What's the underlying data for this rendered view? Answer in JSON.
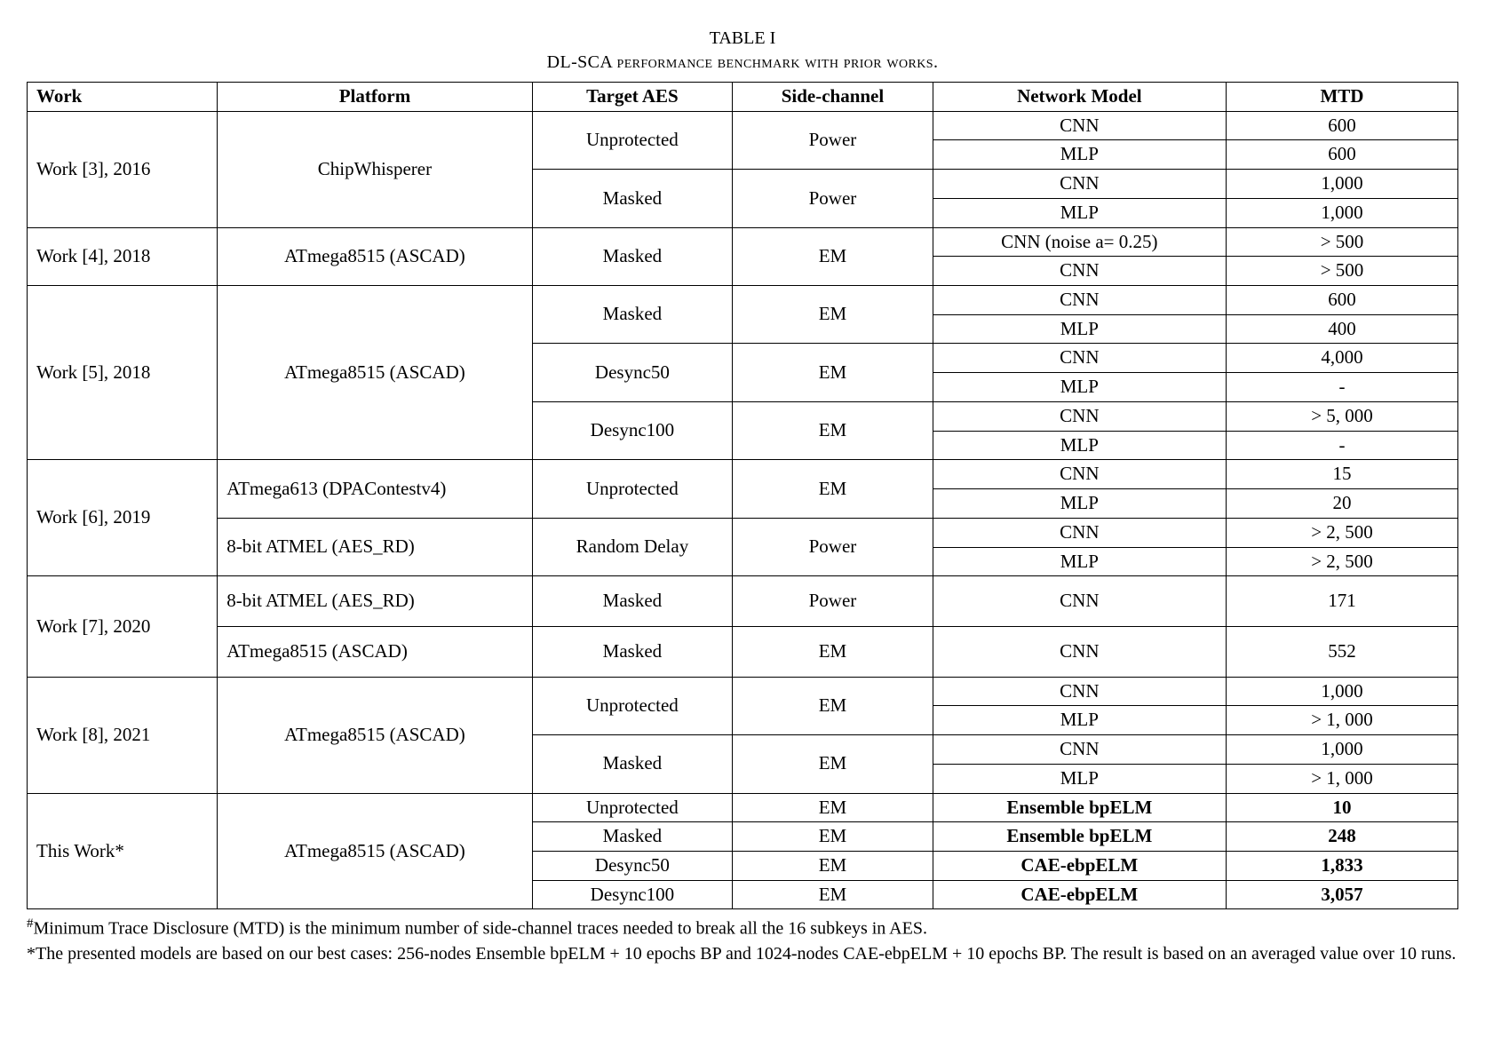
{
  "caption": {
    "num": "TABLE I",
    "title": "DL-SCA performance benchmark with prior works."
  },
  "headers": [
    "Work",
    "Platform",
    "Target AES",
    "Side-channel",
    "Network Model",
    "MTD"
  ],
  "rows": [
    {
      "work": "Work [3], 2016",
      "platform": "ChipWhisperer",
      "target": "Unprotected",
      "sc": "Power",
      "model": "CNN",
      "mtd": "600",
      "wr": 4,
      "pr": 4,
      "tr": 2,
      "sr": 2
    },
    {
      "model": "MLP",
      "mtd": "600"
    },
    {
      "target": "Masked",
      "sc": "Power",
      "model": "CNN",
      "mtd": "1,000",
      "tr": 2,
      "sr": 2
    },
    {
      "model": "MLP",
      "mtd": "1,000"
    },
    {
      "work": "Work [4], 2018",
      "platform": "ATmega8515 (ASCAD)",
      "target": "Masked",
      "sc": "EM",
      "model": "CNN (noise a= 0.25)",
      "mtd": "> 500",
      "wr": 2,
      "pr": 2,
      "tr": 2,
      "sr": 2
    },
    {
      "model": "CNN",
      "mtd": "> 500"
    },
    {
      "work": "Work [5], 2018",
      "platform": "ATmega8515 (ASCAD)",
      "target": "Masked",
      "sc": "EM",
      "model": "CNN",
      "mtd": "600",
      "wr": 6,
      "pr": 6,
      "tr": 2,
      "sr": 2
    },
    {
      "model": "MLP",
      "mtd": "400"
    },
    {
      "target": "Desync50",
      "sc": "EM",
      "model": "CNN",
      "mtd": "4,000",
      "tr": 2,
      "sr": 2
    },
    {
      "model": "MLP",
      "mtd": "-"
    },
    {
      "target": "Desync100",
      "sc": "EM",
      "model": "CNN",
      "mtd": "> 5, 000",
      "tr": 2,
      "sr": 2
    },
    {
      "model": "MLP",
      "mtd": "-"
    },
    {
      "work": "Work [6], 2019",
      "platform": "ATmega613 (DPAContestv4)",
      "target": "Unprotected",
      "sc": "EM",
      "model": "CNN",
      "mtd": "15",
      "wr": 4,
      "pr": 2,
      "tr": 2,
      "sr": 2,
      "pleft": true
    },
    {
      "model": "MLP",
      "mtd": "20"
    },
    {
      "platform": "8-bit ATMEL (AES_RD)",
      "target": "Random Delay",
      "sc": "Power",
      "model": "CNN",
      "mtd": "> 2, 500",
      "pr": 2,
      "tr": 2,
      "sr": 2,
      "pleft": true
    },
    {
      "model": "MLP",
      "mtd": "> 2, 500"
    },
    {
      "work": "Work [7], 2020",
      "platform": "8-bit ATMEL (AES_RD)",
      "target": "Masked",
      "sc": "Power",
      "model": "CNN",
      "mtd": "171",
      "wr": 2,
      "pleft": true,
      "tall": true
    },
    {
      "platform": "ATmega8515 (ASCAD)",
      "target": "Masked",
      "sc": "EM",
      "model": "CNN",
      "mtd": "552",
      "pleft": true,
      "tall": true
    },
    {
      "work": "Work [8], 2021",
      "platform": "ATmega8515 (ASCAD)",
      "target": "Unprotected",
      "sc": "EM",
      "model": "CNN",
      "mtd": "1,000",
      "wr": 4,
      "pr": 4,
      "tr": 2,
      "sr": 2
    },
    {
      "model": "MLP",
      "mtd": "> 1, 000"
    },
    {
      "target": "Masked",
      "sc": "EM",
      "model": "CNN",
      "mtd": "1,000",
      "tr": 2,
      "sr": 2
    },
    {
      "model": "MLP",
      "mtd": "> 1, 000"
    },
    {
      "work": "This Work*",
      "platform": "ATmega8515 (ASCAD)",
      "target": "Unprotected",
      "sc": "EM",
      "model": "Ensemble bpELM",
      "mtd": "10",
      "wr": 4,
      "pr": 4,
      "bold": true
    },
    {
      "target": "Masked",
      "sc": "EM",
      "model": "Ensemble bpELM",
      "mtd": "248",
      "bold": true
    },
    {
      "target": "Desync50",
      "sc": "EM",
      "model": "CAE-ebpELM",
      "mtd": "1,833",
      "bold": true
    },
    {
      "target": "Desync100",
      "sc": "EM",
      "model": "CAE-ebpELM",
      "mtd": "3,057",
      "bold": true
    }
  ],
  "notes": [
    "#Minimum Trace Disclosure (MTD) is the minimum number of side-channel traces needed to break all the 16 subkeys in AES.",
    "*The presented models are based on our best cases: 256-nodes Ensemble bpELM + 10 epochs BP and 1024-nodes CAE-ebpELM + 10 epochs BP. The result is based on an averaged value over 10 runs."
  ]
}
